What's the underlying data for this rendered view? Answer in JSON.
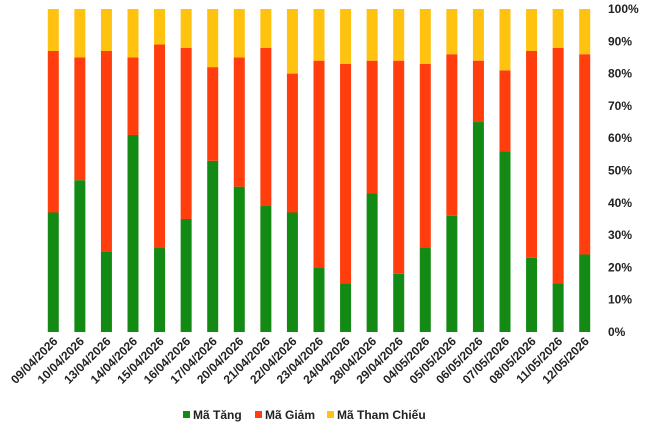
{
  "chart_data": {
    "type": "bar",
    "stacked": true,
    "percent": true,
    "categories": [
      "09/04/2026",
      "10/04/2026",
      "13/04/2026",
      "14/04/2026",
      "15/04/2026",
      "16/04/2026",
      "17/04/2026",
      "20/04/2026",
      "21/04/2026",
      "22/04/2026",
      "23/04/2026",
      "24/04/2026",
      "28/04/2026",
      "29/04/2026",
      "04/05/2026",
      "05/05/2026",
      "06/05/2026",
      "07/05/2026",
      "08/05/2026",
      "11/05/2026",
      "12/05/2026"
    ],
    "series": [
      {
        "name": "Mã Tăng",
        "color": "#138a13",
        "values": [
          37,
          47,
          25,
          61,
          26,
          35,
          53,
          45,
          39,
          37,
          20,
          15,
          43,
          18,
          26,
          36,
          65,
          56,
          23,
          15,
          24
        ]
      },
      {
        "name": "Mã Giảm",
        "color": "#ff3d0d",
        "values": [
          50,
          38,
          62,
          24,
          63,
          53,
          29,
          40,
          49,
          43,
          64,
          68,
          41,
          66,
          57,
          50,
          19,
          25,
          64,
          73,
          62
        ]
      },
      {
        "name": "Mã Tham Chiếu",
        "color": "#ffc20e",
        "values": [
          13,
          15,
          13,
          15,
          11,
          12,
          18,
          15,
          12,
          20,
          16,
          17,
          16,
          16,
          17,
          14,
          16,
          19,
          13,
          12,
          14
        ]
      }
    ],
    "y_ticks": [
      "0%",
      "10%",
      "20%",
      "30%",
      "40%",
      "50%",
      "60%",
      "70%",
      "80%",
      "90%",
      "100%"
    ],
    "ylim": [
      0,
      100
    ],
    "grid": false,
    "legend_position": "bottom"
  }
}
